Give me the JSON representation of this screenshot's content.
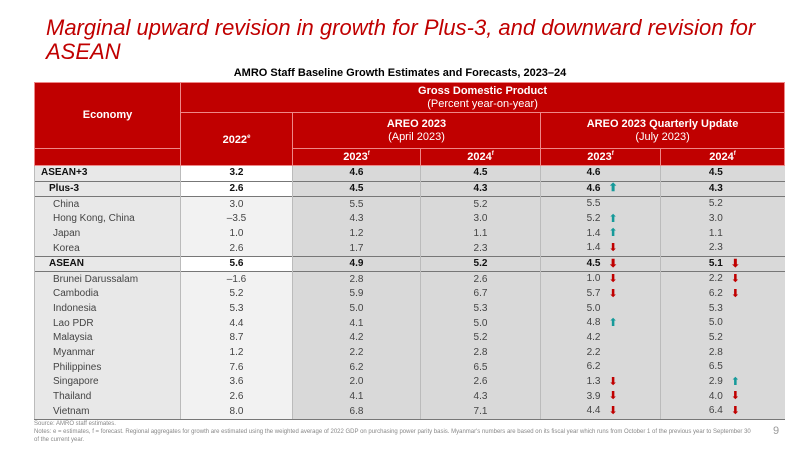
{
  "title": "Marginal upward revision in growth for Plus-3, and downward revision for ASEAN",
  "subtitle": "AMRO Staff Baseline Growth Estimates and Forecasts, 2023–24",
  "header": {
    "economy": "Economy",
    "gdp": "Gross Domestic Product",
    "gdp_unit": "(Percent year-on-year)",
    "y2022": "2022",
    "y2022_sup": "e",
    "areo": "AREO 2023",
    "areo_date": "(April 2023)",
    "qu": "AREO 2023 Quarterly Update",
    "qu_date": "(July 2023)",
    "y2023": "2023",
    "y2024": "2024",
    "f": "f"
  },
  "colors": {
    "red": "#c00000",
    "up": "#169a9a"
  },
  "rows": [
    {
      "name": "ASEAN+3",
      "v": [
        "3.2",
        "4.6",
        "4.5",
        "4.6",
        "4.5"
      ],
      "a3": "",
      "a4": "",
      "type": "agg"
    },
    {
      "name": "Plus-3",
      "v": [
        "2.6",
        "4.5",
        "4.3",
        "4.6",
        "4.3"
      ],
      "a3": "up",
      "a4": "",
      "type": "agg2"
    },
    {
      "name": "China",
      "v": [
        "3.0",
        "5.5",
        "5.2",
        "5.5",
        "5.2"
      ],
      "a3": "",
      "a4": ""
    },
    {
      "name": "Hong Kong, China",
      "v": [
        "–3.5",
        "4.3",
        "3.0",
        "5.2",
        "3.0"
      ],
      "a3": "up",
      "a4": ""
    },
    {
      "name": "Japan",
      "v": [
        "1.0",
        "1.2",
        "1.1",
        "1.4",
        "1.1"
      ],
      "a3": "up",
      "a4": ""
    },
    {
      "name": "Korea",
      "v": [
        "2.6",
        "1.7",
        "2.3",
        "1.4",
        "2.3"
      ],
      "a3": "down",
      "a4": ""
    },
    {
      "name": "ASEAN",
      "v": [
        "5.6",
        "4.9",
        "5.2",
        "4.5",
        "5.1"
      ],
      "a3": "down",
      "a4": "down",
      "type": "agg2"
    },
    {
      "name": "Brunei Darussalam",
      "v": [
        "–1.6",
        "2.8",
        "2.6",
        "1.0",
        "2.2"
      ],
      "a3": "down",
      "a4": "down"
    },
    {
      "name": "Cambodia",
      "v": [
        "5.2",
        "5.9",
        "6.7",
        "5.7",
        "6.2"
      ],
      "a3": "down",
      "a4": "down"
    },
    {
      "name": "Indonesia",
      "v": [
        "5.3",
        "5.0",
        "5.3",
        "5.0",
        "5.3"
      ],
      "a3": "",
      "a4": ""
    },
    {
      "name": "Lao PDR",
      "v": [
        "4.4",
        "4.1",
        "5.0",
        "4.8",
        "5.0"
      ],
      "a3": "up",
      "a4": ""
    },
    {
      "name": "Malaysia",
      "v": [
        "8.7",
        "4.2",
        "5.2",
        "4.2",
        "5.2"
      ],
      "a3": "",
      "a4": ""
    },
    {
      "name": "Myanmar",
      "v": [
        "1.2",
        "2.2",
        "2.8",
        "2.2",
        "2.8"
      ],
      "a3": "",
      "a4": ""
    },
    {
      "name": "Philippines",
      "v": [
        "7.6",
        "6.2",
        "6.5",
        "6.2",
        "6.5"
      ],
      "a3": "",
      "a4": ""
    },
    {
      "name": "Singapore",
      "v": [
        "3.6",
        "2.0",
        "2.6",
        "1.3",
        "2.9"
      ],
      "a3": "down",
      "a4": "up"
    },
    {
      "name": "Thailand",
      "v": [
        "2.6",
        "4.1",
        "4.3",
        "3.9",
        "4.0"
      ],
      "a3": "down",
      "a4": "down"
    },
    {
      "name": "Vietnam",
      "v": [
        "8.0",
        "6.8",
        "7.1",
        "4.4",
        "6.4"
      ],
      "a3": "down",
      "a4": "down"
    }
  ],
  "notes": {
    "source": "Source: AMRO staff estimates.",
    "text": "Notes: e = estimates, f = forecast. Regional aggregates for growth are estimated using the weighted average of 2022 GDP on purchasing power parity basis. Myanmar's numbers are based on its fiscal year which runs from October 1 of the previous year to September 30 of the current year."
  },
  "page_number": "9"
}
